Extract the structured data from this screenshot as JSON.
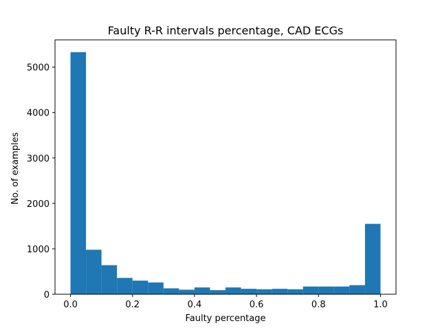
{
  "chart_data": {
    "type": "bar",
    "title": "Faulty R-R intervals percentage, CAD ECGs",
    "xlabel": "Faulty percentage",
    "ylabel": "No. of examples",
    "xlim": [
      -0.05,
      1.05
    ],
    "ylim": [
      0,
      5600
    ],
    "xticks": [
      0.0,
      0.2,
      0.4,
      0.6,
      0.8,
      1.0
    ],
    "xtick_labels": [
      "0.0",
      "0.2",
      "0.4",
      "0.6",
      "0.8",
      "1.0"
    ],
    "yticks": [
      0,
      1000,
      2000,
      3000,
      4000,
      5000
    ],
    "ytick_labels": [
      "0",
      "1000",
      "2000",
      "3000",
      "4000",
      "5000"
    ],
    "bin_edges": [
      0.0,
      0.05,
      0.1,
      0.15,
      0.2,
      0.25,
      0.3,
      0.35,
      0.4,
      0.45,
      0.5,
      0.55,
      0.6,
      0.65,
      0.7,
      0.75,
      0.8,
      0.85,
      0.9,
      0.95,
      1.0
    ],
    "values": [
      5330,
      980,
      640,
      360,
      300,
      260,
      130,
      100,
      150,
      90,
      150,
      120,
      110,
      120,
      110,
      170,
      170,
      170,
      200,
      1550
    ],
    "bar_color": "#1f77b4",
    "grid": false,
    "legend": false
  }
}
